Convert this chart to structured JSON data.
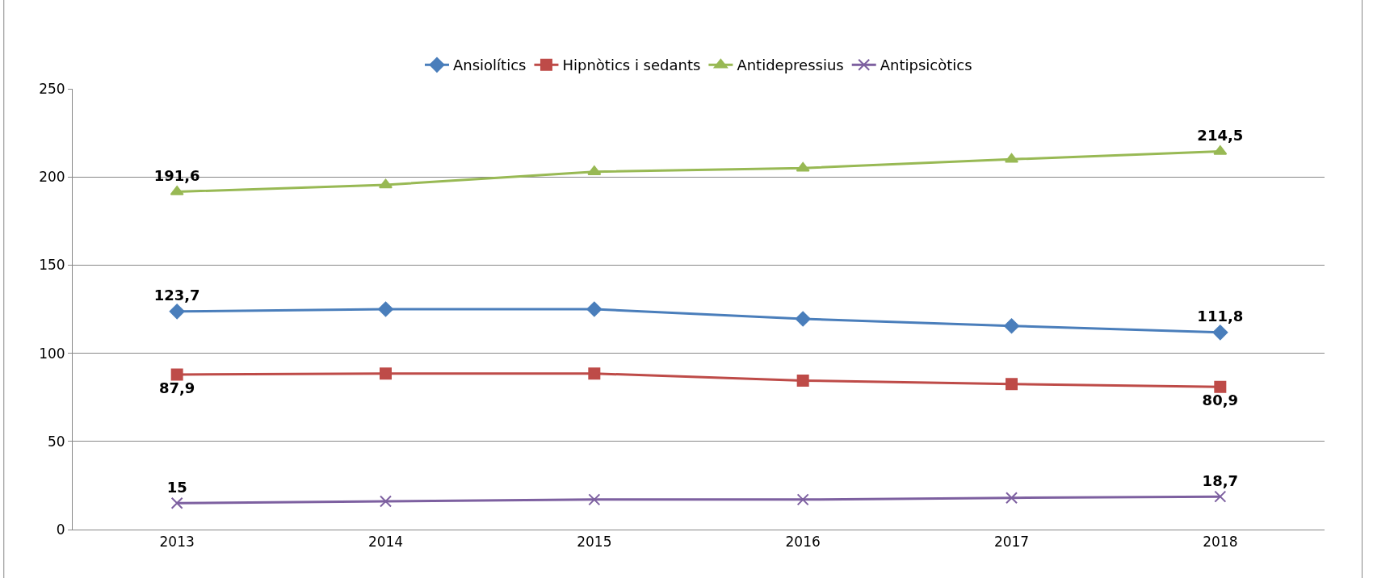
{
  "chart_data": {
    "type": "line",
    "categories": [
      "2013",
      "2014",
      "2015",
      "2016",
      "2017",
      "2018"
    ],
    "series": [
      {
        "name": "Ansiolítics",
        "color": "#4a7ebb",
        "marker": "diamond",
        "values": [
          123.7,
          125,
          125,
          119.5,
          115.5,
          111.8
        ],
        "value_labels": [
          "123,7",
          null,
          null,
          null,
          null,
          "111,8"
        ]
      },
      {
        "name": "Hipnòtics i sedants",
        "color": "#be4b48",
        "marker": "square",
        "values": [
          87.9,
          88.5,
          88.5,
          84.5,
          82.5,
          80.9
        ],
        "value_labels": [
          "87,9",
          null,
          null,
          null,
          null,
          "80,9"
        ]
      },
      {
        "name": "Antidepressius",
        "color": "#98b954",
        "marker": "triangle",
        "values": [
          191.6,
          195.5,
          203,
          205,
          210,
          214.5
        ],
        "value_labels": [
          "191,6",
          null,
          null,
          null,
          null,
          "214,5"
        ]
      },
      {
        "name": "Antipsicòtics",
        "color": "#7d60a0",
        "marker": "cross",
        "values": [
          15,
          16,
          17,
          17,
          18,
          18.7
        ],
        "value_labels": [
          "15",
          null,
          null,
          null,
          null,
          "18,7"
        ]
      }
    ],
    "ylim": [
      0,
      250
    ],
    "yticks": [
      0,
      50,
      100,
      150,
      200,
      250
    ],
    "grid": "y",
    "legend": "top"
  }
}
